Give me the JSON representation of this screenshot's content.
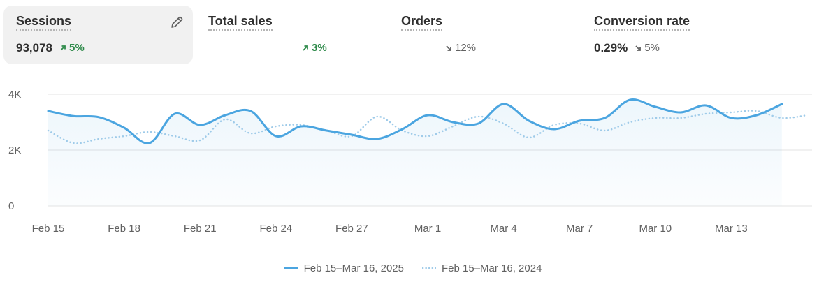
{
  "metrics": {
    "sessions": {
      "title": "Sessions",
      "value": "93,078",
      "delta": "5%",
      "direction": "up"
    },
    "total_sales": {
      "title": "Total sales",
      "value": "",
      "delta": "3%",
      "direction": "up"
    },
    "orders": {
      "title": "Orders",
      "value": "",
      "delta": "12%",
      "direction": "down"
    },
    "conversion": {
      "title": "Conversion rate",
      "value": "0.29%",
      "delta": "5%",
      "direction": "down"
    },
    "edit_icon": "pencil-icon"
  },
  "colors": {
    "current_series": "#4ba5e0",
    "previous_series": "#9fcbe9",
    "up": "#2e8a4a",
    "down": "#616161",
    "grid": "#e3e3e3"
  },
  "chart_data": {
    "type": "line",
    "title": "",
    "xlabel": "",
    "ylabel": "",
    "ylim": [
      0,
      4000
    ],
    "yticks": [
      0,
      2000,
      4000
    ],
    "ytick_labels": [
      "0",
      "2K",
      "4K"
    ],
    "xtick_labels": [
      "Feb 15",
      "Feb 18",
      "Feb 21",
      "Feb 24",
      "Feb 27",
      "Mar 1",
      "Mar 4",
      "Mar 7",
      "Mar 10",
      "Mar 13"
    ],
    "xtick_every_days": 3,
    "grid": true,
    "legend_position": "bottom-center",
    "series": [
      {
        "name": "Feb 15–Mar 16, 2025",
        "style": "solid",
        "values": [
          3400,
          3220,
          3180,
          2800,
          2250,
          3300,
          2900,
          3250,
          3400,
          2500,
          2850,
          2700,
          2550,
          2400,
          2750,
          3250,
          3000,
          2950,
          3650,
          3050,
          2750,
          3050,
          3150,
          3800,
          3550,
          3350,
          3600,
          3150,
          3250,
          3650
        ]
      },
      {
        "name": "Feb 15–Mar 16, 2024",
        "style": "dotted",
        "values": [
          2700,
          2250,
          2400,
          2500,
          2650,
          2500,
          2350,
          3100,
          2600,
          2850,
          2900,
          2700,
          2500,
          3200,
          2700,
          2500,
          2850,
          3200,
          2950,
          2450,
          2900,
          2950,
          2700,
          3000,
          3150,
          3150,
          3300,
          3350,
          3400,
          3150,
          3250
        ]
      }
    ]
  }
}
